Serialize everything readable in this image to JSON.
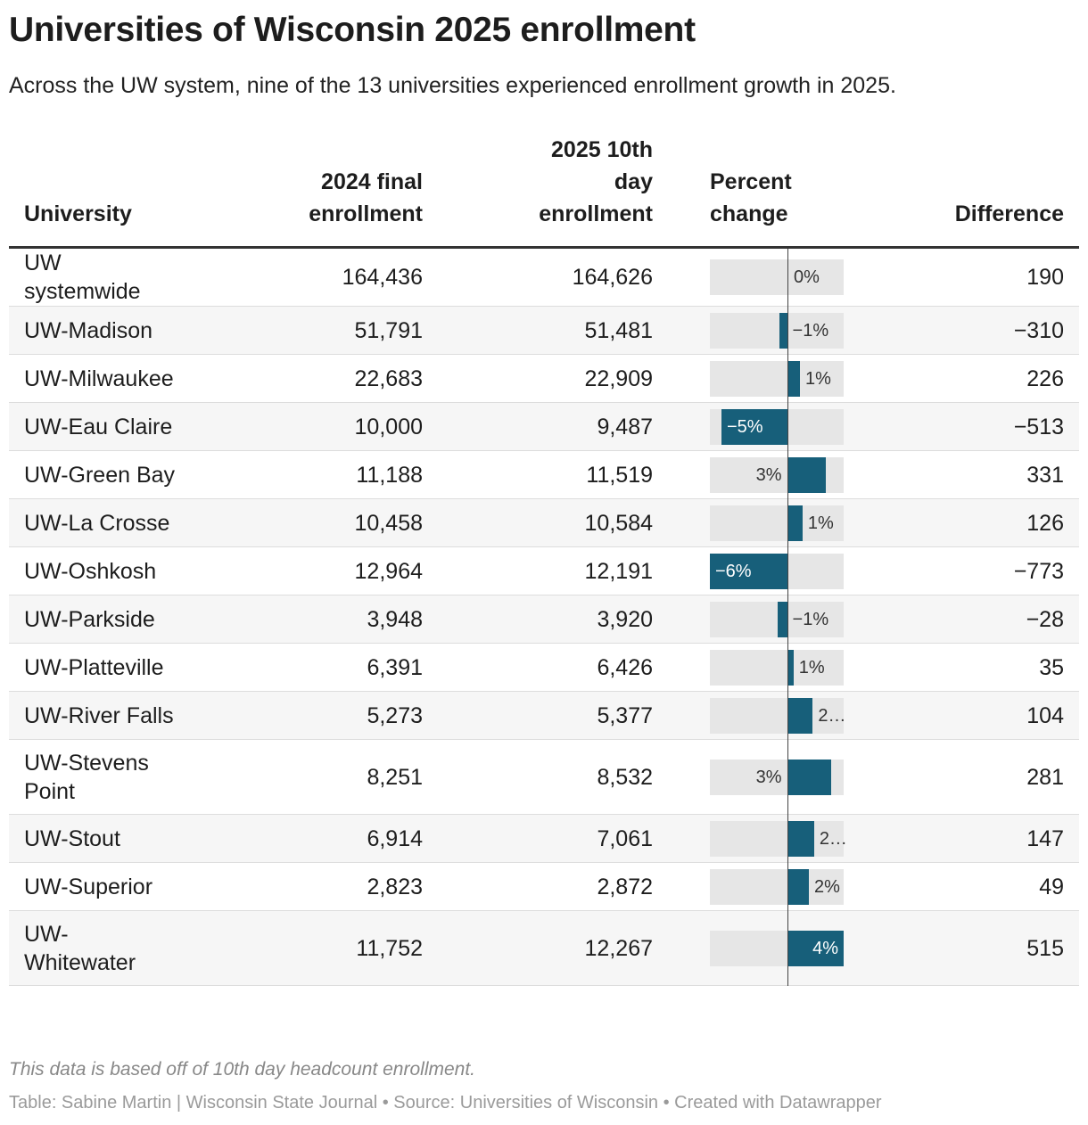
{
  "header": {
    "title": "Universities of Wisconsin 2025 enrollment",
    "subtitle": "Across the UW system, nine of the 13 universities experienced enrollment growth in 2025."
  },
  "table": {
    "columns": [
      "University",
      "2024 final enrollment",
      "2025 10th day enrollment",
      "Percent change",
      "Difference"
    ],
    "bar_color": "#175f7a",
    "rows": [
      [
        "UW systemwide",
        "164,436",
        "164,626",
        {
          "value": 0.1,
          "label": "0%"
        },
        "190"
      ],
      [
        "UW-Madison",
        "51,791",
        "51,481",
        {
          "value": -0.6,
          "label": "−1%"
        },
        "−310"
      ],
      [
        "UW-Milwaukee",
        "22,683",
        "22,909",
        {
          "value": 1.0,
          "label": "1%"
        },
        "226"
      ],
      [
        "UW-Eau Claire",
        "10,000",
        "9,487",
        {
          "value": -5.1,
          "label": "−5%"
        },
        "−513"
      ],
      [
        "UW-Green Bay",
        "11,188",
        "11,519",
        {
          "value": 3.0,
          "label": "3%"
        },
        "331"
      ],
      [
        "UW-La Crosse",
        "10,458",
        "10,584",
        {
          "value": 1.2,
          "label": "1%"
        },
        "126"
      ],
      [
        "UW-Oshkosh",
        "12,964",
        "12,191",
        {
          "value": -6.0,
          "label": "−6%"
        },
        "−773"
      ],
      [
        "UW-Parkside",
        "3,948",
        "3,920",
        {
          "value": -0.7,
          "label": "−1%"
        },
        "−28"
      ],
      [
        "UW-Platteville",
        "6,391",
        "6,426",
        {
          "value": 0.5,
          "label": "1%"
        },
        "35"
      ],
      [
        "UW-River Falls",
        "5,273",
        "5,377",
        {
          "value": 2.0,
          "label": "2…"
        },
        "104"
      ],
      [
        "UW-Stevens Point",
        "8,251",
        "8,532",
        {
          "value": 3.4,
          "label": "3%"
        },
        "281"
      ],
      [
        "UW-Stout",
        "6,914",
        "7,061",
        {
          "value": 2.1,
          "label": "2…"
        },
        "147"
      ],
      [
        "UW-Superior",
        "2,823",
        "2,872",
        {
          "value": 1.7,
          "label": "2%"
        },
        "49"
      ],
      [
        "UW-Whitewater",
        "11,752",
        "12,267",
        {
          "value": 4.4,
          "label": "4%"
        },
        "515"
      ]
    ]
  },
  "footer": {
    "note": "This data is based off of 10th day headcount enrollment.",
    "credit": "Table: Sabine Martin | Wisconsin State Journal • Source: Universities of Wisconsin • Created with Datawrapper"
  }
}
